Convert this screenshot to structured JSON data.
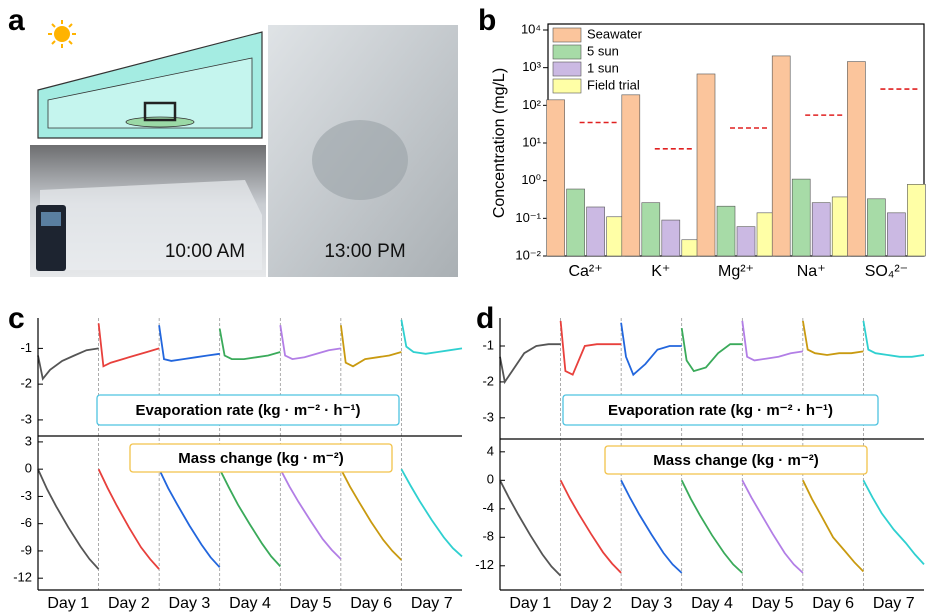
{
  "panel_labels": [
    "a",
    "b",
    "c",
    "d"
  ],
  "photo_captions": [
    "10:00 AM",
    "13:00 PM"
  ],
  "chart_data": [
    {
      "type": "bar",
      "y_label": "Concentration (mg/L)",
      "log": true,
      "legend": "top-left",
      "categories": [
        "Ca²⁺",
        "K⁺",
        "Mg²⁺",
        "Na⁺",
        "SO₄²⁻"
      ],
      "ylim": [
        0.01,
        10000
      ],
      "yticks": [
        {
          "value": 0.01,
          "label": "10⁻²"
        },
        {
          "value": 0.1,
          "label": "10⁻¹"
        },
        {
          "value": 1,
          "label": "10⁰"
        },
        {
          "value": 10,
          "label": "10¹"
        },
        {
          "value": 100,
          "label": "10²"
        },
        {
          "value": 1000,
          "label": "10³"
        },
        {
          "value": 10000,
          "label": "10⁴"
        }
      ],
      "series": [
        {
          "name": "Seawater",
          "color": "#fbc59c",
          "values": [
            140,
            190,
            680,
            2050,
            1450
          ]
        },
        {
          "name": "5 sun",
          "color": "#a7dba7",
          "values": [
            0.6,
            0.26,
            0.21,
            1.1,
            0.33
          ]
        },
        {
          "name": "1 sun",
          "color": "#cbb9e3",
          "values": [
            0.2,
            0.09,
            0.06,
            0.26,
            0.14
          ]
        },
        {
          "name": "Field trial",
          "color": "#ffffa6",
          "values": [
            0.11,
            0.027,
            0.14,
            0.37,
            0.8
          ]
        }
      ],
      "thresholds": [
        35,
        7,
        25,
        55,
        270
      ],
      "threshold_color": "#e02020"
    },
    {
      "type": "line",
      "categories": [
        "Day 1",
        "Day 2",
        "Day 3",
        "Day 4",
        "Day 5",
        "Day 6",
        "Day 7"
      ],
      "xlim": [
        0,
        7
      ],
      "panels": [
        {
          "annotation": "Evaporation rate (kg · m⁻² · h⁻¹)",
          "ylim": [
            -3.45,
            -0.15
          ],
          "yticks": [
            -1,
            -2,
            -3
          ],
          "series": [
            {
              "color": "#555555",
              "x": [
                0,
                0.08,
                0.2,
                0.4,
                0.6,
                0.8,
                1
              ],
              "values": [
                -1.2,
                -1.85,
                -1.6,
                -1.35,
                -1.2,
                -1.05,
                -1.0
              ]
            },
            {
              "color": "#e8403c",
              "x": [
                1,
                1.08,
                1.2,
                1.4,
                1.6,
                1.8,
                2
              ],
              "values": [
                -0.3,
                -1.5,
                -1.4,
                -1.3,
                -1.2,
                -1.1,
                -1.0
              ]
            },
            {
              "color": "#2266dd",
              "x": [
                2,
                2.08,
                2.2,
                2.4,
                2.6,
                2.8,
                3
              ],
              "values": [
                -0.35,
                -1.3,
                -1.35,
                -1.3,
                -1.25,
                -1.2,
                -1.15
              ]
            },
            {
              "color": "#3aaa5a",
              "x": [
                3,
                3.08,
                3.2,
                3.4,
                3.6,
                3.8,
                4
              ],
              "values": [
                -0.45,
                -1.2,
                -1.3,
                -1.3,
                -1.25,
                -1.2,
                -1.1
              ]
            },
            {
              "color": "#b27ee6",
              "x": [
                4,
                4.08,
                4.2,
                4.4,
                4.6,
                4.8,
                5
              ],
              "values": [
                -0.35,
                -1.2,
                -1.3,
                -1.25,
                -1.15,
                -1.05,
                -1.0
              ]
            },
            {
              "color": "#c99a10",
              "x": [
                5,
                5.08,
                5.2,
                5.4,
                5.6,
                5.8,
                6
              ],
              "values": [
                -0.35,
                -1.4,
                -1.5,
                -1.3,
                -1.25,
                -1.2,
                -1.1
              ]
            },
            {
              "color": "#2fd0d0",
              "x": [
                6,
                6.08,
                6.2,
                6.4,
                6.6,
                6.8,
                7
              ],
              "values": [
                -0.2,
                -0.95,
                -1.1,
                -1.15,
                -1.1,
                -1.05,
                -1.0
              ]
            }
          ]
        },
        {
          "annotation": "Mass change (kg · m⁻²)",
          "ylim": [
            -13.3,
            3.65
          ],
          "yticks": [
            3,
            0,
            -3,
            -6,
            -9,
            -12
          ],
          "series": [
            {
              "color": "#555555",
              "x": [
                0,
                0.15,
                0.3,
                0.5,
                0.7,
                0.85,
                1
              ],
              "values": [
                0,
                -2.2,
                -4.1,
                -6.4,
                -8.5,
                -9.9,
                -11
              ]
            },
            {
              "color": "#e8403c",
              "x": [
                1,
                1.15,
                1.3,
                1.5,
                1.7,
                1.85,
                2
              ],
              "values": [
                0,
                -2.1,
                -4.0,
                -6.4,
                -8.6,
                -9.9,
                -11
              ]
            },
            {
              "color": "#2266dd",
              "x": [
                2,
                2.15,
                2.3,
                2.5,
                2.7,
                2.85,
                3
              ],
              "values": [
                0,
                -2.1,
                -3.9,
                -6.2,
                -8.3,
                -9.7,
                -10.8
              ]
            },
            {
              "color": "#3aaa5a",
              "x": [
                3,
                3.15,
                3.3,
                3.5,
                3.7,
                3.85,
                4
              ],
              "values": [
                0,
                -2.0,
                -3.9,
                -6.1,
                -8.2,
                -9.6,
                -10.7
              ]
            },
            {
              "color": "#b27ee6",
              "x": [
                4,
                4.15,
                4.3,
                4.5,
                4.7,
                4.85,
                5
              ],
              "values": [
                0,
                -1.9,
                -3.6,
                -5.7,
                -7.7,
                -8.9,
                -9.9
              ]
            },
            {
              "color": "#c99a10",
              "x": [
                5,
                5.15,
                5.3,
                5.5,
                5.7,
                5.85,
                6
              ],
              "values": [
                0,
                -1.9,
                -3.6,
                -5.8,
                -7.8,
                -9.0,
                -10
              ]
            },
            {
              "color": "#2fd0d0",
              "x": [
                6,
                6.15,
                6.3,
                6.5,
                6.7,
                6.85,
                7
              ],
              "values": [
                0,
                -1.8,
                -3.5,
                -5.6,
                -7.5,
                -8.7,
                -9.6
              ]
            }
          ]
        }
      ]
    },
    {
      "type": "line",
      "categories": [
        "Day 1",
        "Day 2",
        "Day 3",
        "Day 4",
        "Day 5",
        "Day 6",
        "Day 7"
      ],
      "xlim": [
        0,
        7
      ],
      "panels": [
        {
          "annotation": "Evaporation rate (kg · m⁻² · h⁻¹)",
          "ylim": [
            -3.59,
            -0.22
          ],
          "yticks": [
            -1,
            -2,
            -3
          ],
          "series": [
            {
              "color": "#555555",
              "x": [
                0,
                0.08,
                0.2,
                0.4,
                0.6,
                0.8,
                1
              ],
              "values": [
                -1.3,
                -2.0,
                -1.7,
                -1.2,
                -1.0,
                -0.95,
                -0.95
              ]
            },
            {
              "color": "#e8403c",
              "x": [
                1,
                1.08,
                1.2,
                1.4,
                1.6,
                1.8,
                2
              ],
              "values": [
                -0.3,
                -1.7,
                -1.8,
                -1.0,
                -0.95,
                -0.95,
                -0.95
              ]
            },
            {
              "color": "#2266dd",
              "x": [
                2,
                2.08,
                2.2,
                2.4,
                2.6,
                2.8,
                3
              ],
              "values": [
                -0.35,
                -1.3,
                -1.8,
                -1.5,
                -1.1,
                -1.0,
                -1.0
              ]
            },
            {
              "color": "#3aaa5a",
              "x": [
                3,
                3.08,
                3.2,
                3.4,
                3.6,
                3.8,
                4
              ],
              "values": [
                -0.5,
                -1.4,
                -1.7,
                -1.6,
                -1.2,
                -0.95,
                -0.95
              ]
            },
            {
              "color": "#b27ee6",
              "x": [
                4,
                4.08,
                4.2,
                4.4,
                4.6,
                4.8,
                5
              ],
              "values": [
                -0.3,
                -1.3,
                -1.4,
                -1.35,
                -1.3,
                -1.2,
                -1.15
              ]
            },
            {
              "color": "#c99a10",
              "x": [
                5,
                5.08,
                5.2,
                5.4,
                5.6,
                5.8,
                6
              ],
              "values": [
                -0.3,
                -1.1,
                -1.2,
                -1.25,
                -1.2,
                -1.2,
                -1.15
              ]
            },
            {
              "color": "#2fd0d0",
              "x": [
                6,
                6.08,
                6.2,
                6.4,
                6.6,
                6.8,
                7
              ],
              "values": [
                -0.3,
                -1.1,
                -1.2,
                -1.25,
                -1.3,
                -1.3,
                -1.25
              ]
            }
          ]
        },
        {
          "annotation": "Mass change (kg · m⁻²)",
          "ylim": [
            -15.4,
            5.8
          ],
          "yticks": [
            4,
            0,
            -4,
            -8,
            -12
          ],
          "series": [
            {
              "color": "#555555",
              "x": [
                0,
                0.15,
                0.3,
                0.5,
                0.7,
                0.85,
                1
              ],
              "values": [
                0,
                -2.5,
                -4.8,
                -7.7,
                -10.4,
                -12.1,
                -13.4
              ]
            },
            {
              "color": "#e8403c",
              "x": [
                1,
                1.15,
                1.3,
                1.5,
                1.7,
                1.85,
                2
              ],
              "values": [
                0,
                -2.5,
                -4.7,
                -7.5,
                -10.1,
                -11.7,
                -13
              ]
            },
            {
              "color": "#2266dd",
              "x": [
                2,
                2.15,
                2.3,
                2.5,
                2.7,
                2.85,
                3
              ],
              "values": [
                0,
                -2.5,
                -4.8,
                -7.6,
                -10.2,
                -11.8,
                -13
              ]
            },
            {
              "color": "#3aaa5a",
              "x": [
                3,
                3.15,
                3.3,
                3.5,
                3.7,
                3.85,
                4
              ],
              "values": [
                0,
                -2.6,
                -4.9,
                -7.7,
                -10.2,
                -11.8,
                -13
              ]
            },
            {
              "color": "#b27ee6",
              "x": [
                4,
                4.15,
                4.3,
                4.5,
                4.7,
                4.85,
                5
              ],
              "values": [
                0,
                -2.4,
                -4.6,
                -7.5,
                -10.2,
                -11.8,
                -13
              ]
            },
            {
              "color": "#c99a10",
              "x": [
                5,
                5.15,
                5.3,
                5.5,
                5.7,
                5.85,
                6
              ],
              "values": [
                0,
                -2.6,
                -4.9,
                -8.0,
                -10.0,
                -11.5,
                -12.8
              ]
            },
            {
              "color": "#2fd0d0",
              "x": [
                6,
                6.15,
                6.3,
                6.5,
                6.7,
                6.85,
                7
              ],
              "values": [
                0,
                -2.4,
                -4.6,
                -6.9,
                -8.8,
                -10.4,
                -11.8
              ]
            }
          ]
        }
      ]
    }
  ]
}
